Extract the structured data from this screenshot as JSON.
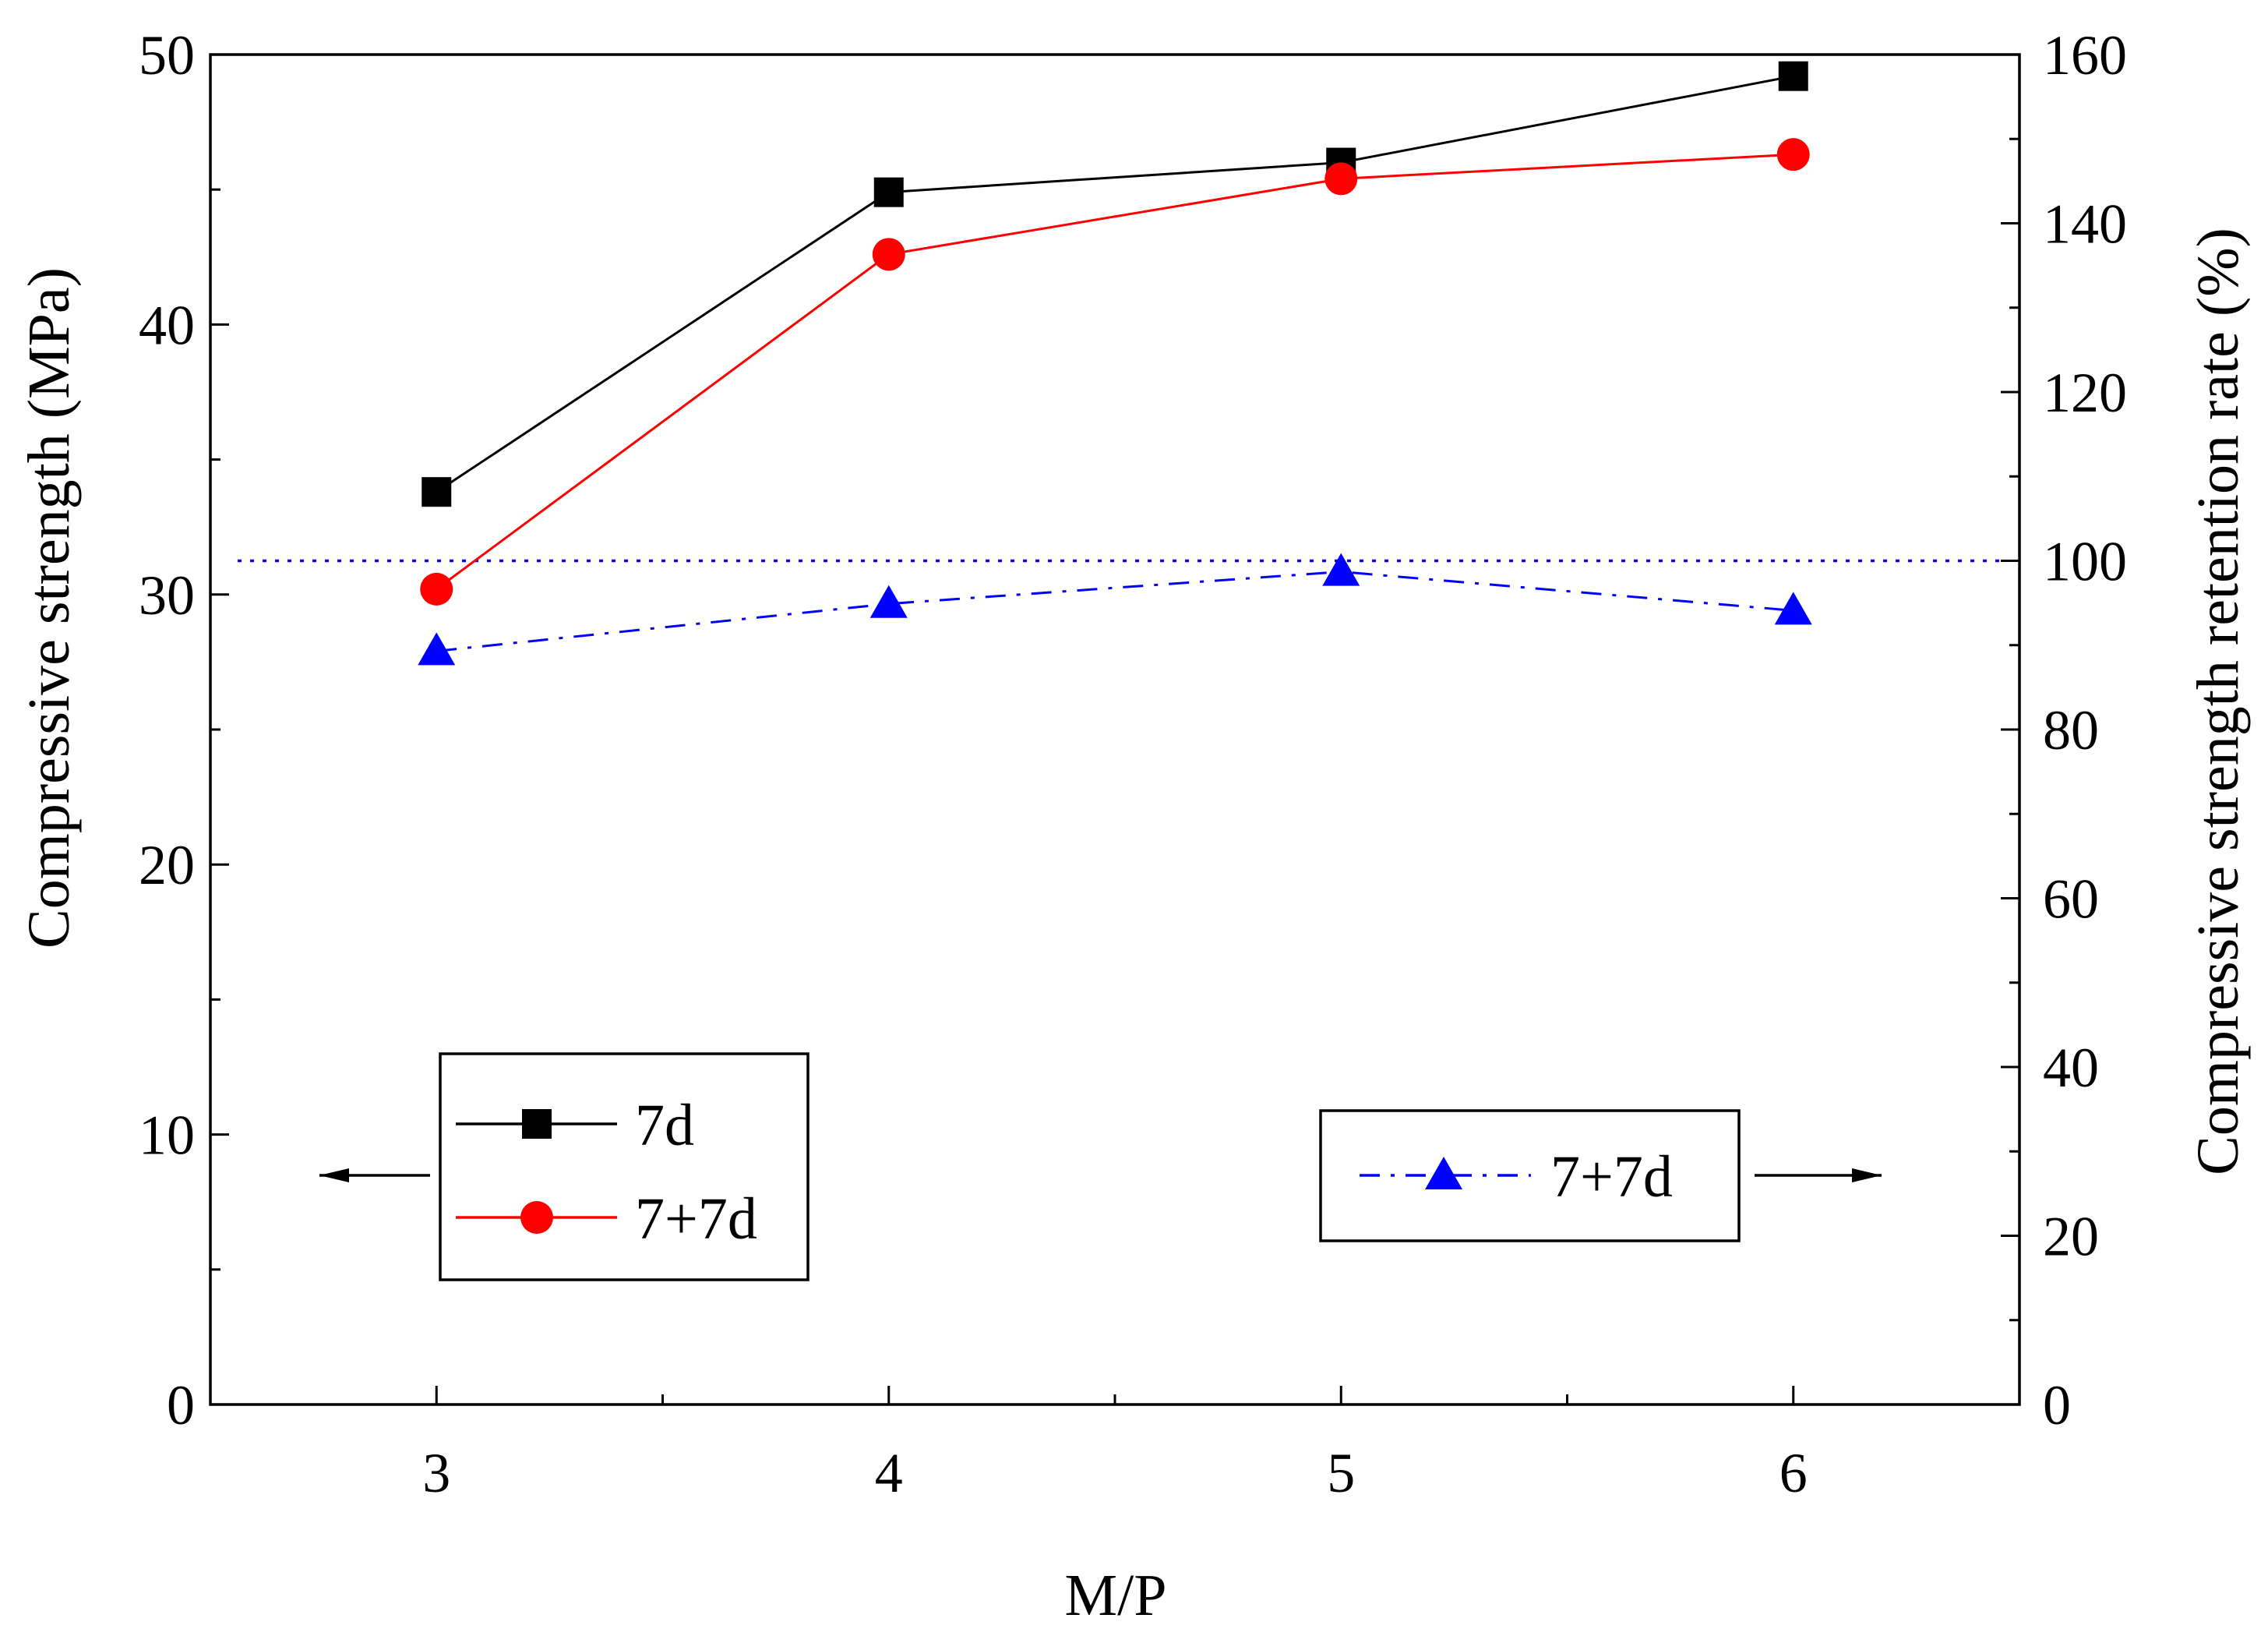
{
  "chart_data": {
    "type": "line",
    "title": "",
    "xlabel": "M/P",
    "ylabel": "Compressive strength (MPa)",
    "y2label": "Compressive strength retention rate (%)",
    "categories": [
      "3",
      "4",
      "5",
      "6"
    ],
    "x": [
      3,
      4,
      5,
      6
    ],
    "xlim": [
      2.5,
      6.5
    ],
    "ylim": [
      0,
      50
    ],
    "y2lim": [
      0,
      160
    ],
    "xticks": [
      "3",
      "4",
      "5",
      "6"
    ],
    "yticks": [
      "0",
      "10",
      "20",
      "30",
      "40",
      "50"
    ],
    "y2ticks": [
      "0",
      "20",
      "40",
      "60",
      "80",
      "100",
      "120",
      "140",
      "160"
    ],
    "reference_line": {
      "axis": "right",
      "value": 100,
      "style": "dotted",
      "color": "#0000ff"
    },
    "grid": false,
    "series": [
      {
        "name": "7d",
        "axis": "left",
        "values": [
          33.8,
          44.9,
          46.0,
          49.2
        ],
        "color": "#000000",
        "marker": "square",
        "line": "solid"
      },
      {
        "name": "7+7d",
        "axis": "left",
        "values": [
          30.2,
          42.6,
          45.4,
          46.3
        ],
        "color": "#ff0000",
        "marker": "circle",
        "line": "solid"
      },
      {
        "name": "7+7d",
        "axis": "right",
        "values": [
          89.3,
          94.9,
          98.7,
          94.1
        ],
        "color": "#0000ff",
        "marker": "triangle",
        "line": "dash-dot"
      }
    ],
    "legends": [
      {
        "placement": "bottom-left",
        "entries": [
          "7d",
          "7+7d"
        ],
        "arrow": "left"
      },
      {
        "placement": "bottom-right",
        "entries": [
          "7+7d"
        ],
        "arrow": "right"
      }
    ]
  }
}
